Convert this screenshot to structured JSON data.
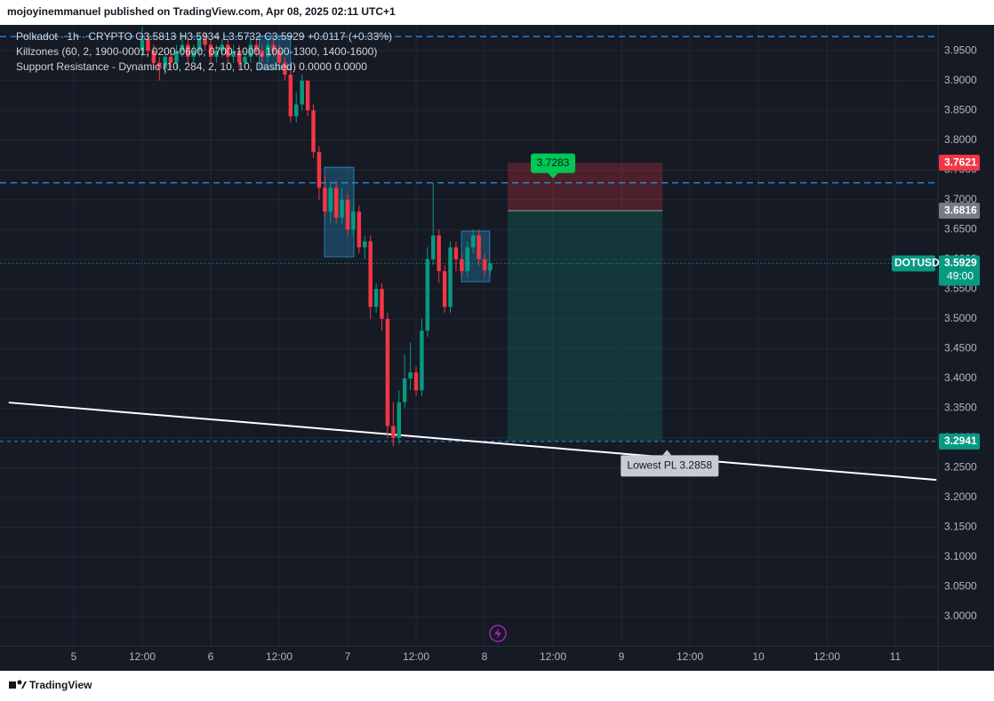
{
  "chart_data": {
    "type": "candlestick",
    "header": "mojoyinemmanuel published on TradingView.com, Apr 08, 2025 02:11 UTC+1",
    "legend": [
      "Polkadot · 1h · CRYPTO  O3.5813  H3.5934  L3.5732  C3.5929  +0.0117 (+0.33%)",
      "Killzones (60, 2, 1900-0001, 0200-0600, 0700-1000, 1000-1300, 1400-1600)",
      "Support Resistance - Dynamic (10, 284, 2, 10, 10, Dashed)  0.0000  0.0000"
    ],
    "symbol": "DOTUSD",
    "countdown": "49:00",
    "footer": "TradingView",
    "up_color": "#089981",
    "down_color": "#f23645",
    "grid": true,
    "x": [
      12,
      13,
      14,
      15,
      16,
      17,
      18,
      19,
      20,
      21,
      22,
      23,
      24,
      25,
      26,
      27,
      28,
      29,
      30,
      31,
      32,
      33,
      34,
      35,
      36,
      37,
      38,
      39,
      40,
      41,
      42,
      43,
      44,
      45,
      46,
      47,
      48,
      49,
      50,
      51,
      52,
      53,
      54,
      55,
      56,
      57,
      58,
      59,
      60,
      61,
      62,
      63,
      64,
      65,
      66,
      67,
      68,
      69,
      70,
      71,
      72,
      73
    ],
    "open": [
      3.95,
      3.97,
      3.95,
      3.93,
      3.92,
      3.94,
      3.93,
      3.95,
      3.96,
      3.94,
      3.95,
      3.97,
      3.96,
      3.94,
      3.95,
      3.96,
      3.94,
      3.95,
      3.93,
      3.94,
      3.96,
      3.95,
      3.94,
      3.96,
      3.95,
      3.93,
      3.91,
      3.84,
      3.86,
      3.9,
      3.85,
      3.78,
      3.72,
      3.68,
      3.72,
      3.67,
      3.7,
      3.65,
      3.68,
      3.62,
      3.63,
      3.52,
      3.55,
      3.5,
      3.32,
      3.3,
      3.36,
      3.4,
      3.41,
      3.38,
      3.48,
      3.6,
      3.64,
      3.58,
      3.52,
      3.62,
      3.6,
      3.58,
      3.62,
      3.64,
      3.6,
      3.5813
    ],
    "high": [
      3.99,
      3.98,
      3.96,
      3.94,
      3.95,
      3.95,
      3.96,
      3.98,
      3.97,
      3.96,
      3.98,
      3.98,
      3.97,
      3.96,
      3.97,
      3.97,
      3.96,
      3.96,
      3.95,
      3.97,
      3.97,
      3.96,
      3.97,
      3.97,
      3.96,
      3.94,
      3.92,
      3.88,
      3.91,
      3.9,
      3.86,
      3.79,
      3.74,
      3.73,
      3.73,
      3.72,
      3.71,
      3.69,
      3.69,
      3.64,
      3.64,
      3.56,
      3.56,
      3.51,
      3.36,
      3.38,
      3.44,
      3.46,
      3.42,
      3.5,
      3.62,
      3.7283,
      3.65,
      3.59,
      3.63,
      3.63,
      3.61,
      3.63,
      3.65,
      3.65,
      3.61,
      3.5934
    ],
    "low": [
      3.94,
      3.94,
      3.92,
      3.9,
      3.91,
      3.92,
      3.92,
      3.94,
      3.93,
      3.93,
      3.94,
      3.95,
      3.93,
      3.93,
      3.94,
      3.93,
      3.93,
      3.92,
      3.92,
      3.93,
      3.94,
      3.93,
      3.93,
      3.94,
      3.92,
      3.9,
      3.83,
      3.83,
      3.85,
      3.84,
      3.77,
      3.7,
      3.67,
      3.66,
      3.66,
      3.66,
      3.64,
      3.64,
      3.61,
      3.6,
      3.5,
      3.51,
      3.48,
      3.3,
      3.2858,
      3.29,
      3.35,
      3.38,
      3.37,
      3.37,
      3.47,
      3.59,
      3.56,
      3.51,
      3.51,
      3.58,
      3.57,
      3.57,
      3.61,
      3.59,
      3.57,
      3.5732
    ],
    "close": [
      3.97,
      3.95,
      3.93,
      3.92,
      3.94,
      3.93,
      3.95,
      3.96,
      3.94,
      3.95,
      3.97,
      3.96,
      3.94,
      3.95,
      3.96,
      3.94,
      3.95,
      3.93,
      3.94,
      3.96,
      3.95,
      3.94,
      3.96,
      3.95,
      3.93,
      3.91,
      3.84,
      3.86,
      3.9,
      3.85,
      3.78,
      3.72,
      3.68,
      3.72,
      3.67,
      3.7,
      3.65,
      3.68,
      3.62,
      3.63,
      3.52,
      3.55,
      3.5,
      3.32,
      3.3,
      3.36,
      3.4,
      3.41,
      3.38,
      3.48,
      3.6,
      3.64,
      3.58,
      3.52,
      3.62,
      3.6,
      3.58,
      3.62,
      3.64,
      3.6,
      3.5813,
      3.5929
    ],
    "xlim": [
      -12.935,
      151.48
    ],
    "ylim": [
      2.95,
      3.995
    ],
    "xticks": [
      {
        "value": 0,
        "label": "5"
      },
      {
        "value": 12,
        "label": "12:00"
      },
      {
        "value": 24,
        "label": "6"
      },
      {
        "value": 36,
        "label": "12:00"
      },
      {
        "value": 48,
        "label": "7"
      },
      {
        "value": 60,
        "label": "12:00"
      },
      {
        "value": 72,
        "label": "8"
      },
      {
        "value": 84,
        "label": "12:00"
      },
      {
        "value": 96,
        "label": "9"
      },
      {
        "value": 108,
        "label": "12:00"
      },
      {
        "value": 120,
        "label": "10"
      },
      {
        "value": 132,
        "label": "12:00"
      },
      {
        "value": 144,
        "label": "11"
      }
    ],
    "yticks": [
      {
        "value": 3.0,
        "label": "3.0000"
      },
      {
        "value": 3.05,
        "label": "3.0500"
      },
      {
        "value": 3.1,
        "label": "3.1000"
      },
      {
        "value": 3.15,
        "label": "3.1500"
      },
      {
        "value": 3.2,
        "label": "3.2000"
      },
      {
        "value": 3.25,
        "label": "3.2500"
      },
      {
        "value": 3.3,
        "label": "3.3000"
      },
      {
        "value": 3.35,
        "label": "3.3500"
      },
      {
        "value": 3.4,
        "label": "3.4000"
      },
      {
        "value": 3.45,
        "label": "3.4500"
      },
      {
        "value": 3.5,
        "label": "3.5000"
      },
      {
        "value": 3.55,
        "label": "3.5500"
      },
      {
        "value": 3.6,
        "label": "3.6000"
      },
      {
        "value": 3.65,
        "label": "3.6500"
      },
      {
        "value": 3.7,
        "label": "3.7000"
      },
      {
        "value": 3.75,
        "label": "3.7500"
      },
      {
        "value": 3.8,
        "label": "3.8000"
      },
      {
        "value": 3.85,
        "label": "3.8500"
      },
      {
        "value": 3.9,
        "label": "3.9000"
      },
      {
        "value": 3.95,
        "label": "3.9500"
      }
    ],
    "levels": [
      {
        "value": 3.9739,
        "color": "#2196f3"
      },
      {
        "value": 3.7283,
        "label": "3.7283",
        "color": "#2196f3"
      },
      {
        "value": 3.2941,
        "color": "#2196f3"
      }
    ],
    "trend_line": {
      "x": [
        -11.4,
        151.2
      ],
      "values": [
        3.3594,
        3.2296
      ],
      "color": "#ffffff"
    },
    "position": {
      "x": [
        76.05,
        103.2
      ],
      "stop": 3.7621,
      "entry": 3.6816,
      "target": 3.2941
    },
    "zones": [
      {
        "x": [
          32.5,
          38
        ],
        "ylim": [
          3.9187,
          3.9753
        ]
      },
      {
        "x": [
          43.95,
          49.1
        ],
        "ylim": [
          3.604,
          3.7546
        ]
      },
      {
        "x": [
          67.95,
          72.9
        ],
        "ylim": [
          3.5622,
          3.6473
        ]
      }
    ],
    "annotation": {
      "text": "Lowest PL 3.2858",
      "value": 3.2858
    },
    "price_labels": [
      {
        "value": 3.7621,
        "label": "3.7621",
        "color": "#f23645"
      },
      {
        "value": 3.6816,
        "label": "3.6816",
        "color": "#787b86"
      },
      {
        "value": 3.5929,
        "label": "3.5929",
        "color": "#089981"
      },
      {
        "value": 3.2941,
        "label": "3.2941",
        "color": "#089981"
      }
    ]
  }
}
